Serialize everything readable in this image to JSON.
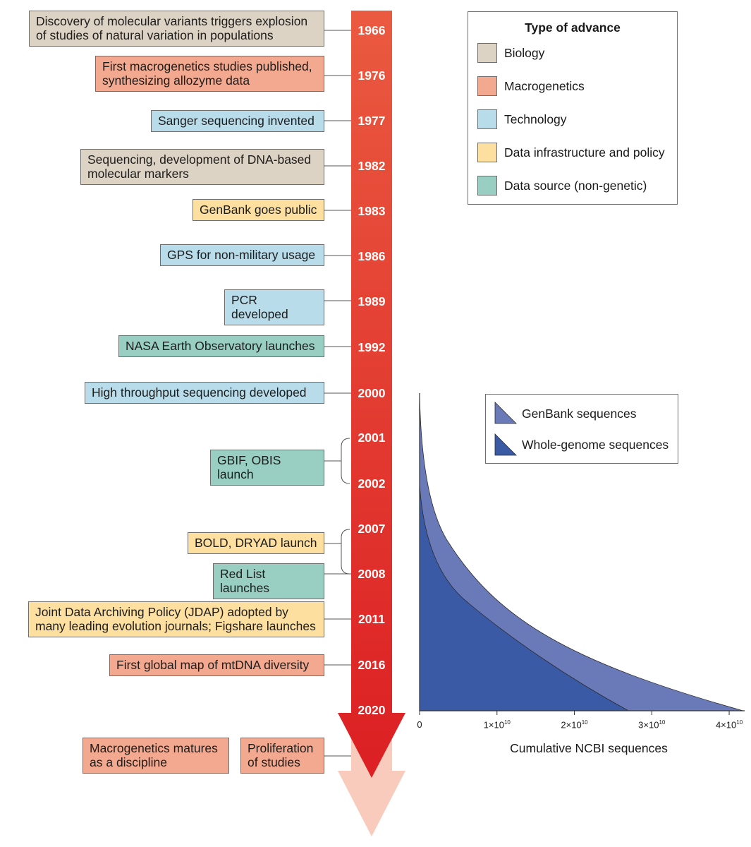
{
  "colors": {
    "biology": "#ddd3c4",
    "macrogenetics": "#f2a98f",
    "technology": "#b9dcea",
    "data_infrastructure": "#fddf9f",
    "data_source": "#98cfc2",
    "arrow_top": "#ea5a40",
    "arrow_bottom": "#dc1f23",
    "arrow_future": "#f8cbbd",
    "genbank": "#6a7ab9",
    "whole_genome": "#3a5aa6"
  },
  "legend": {
    "title": "Type of advance",
    "items": [
      {
        "label": "Biology",
        "color": "#ddd3c4"
      },
      {
        "label": "Macrogenetics",
        "color": "#f2a98f"
      },
      {
        "label": "Technology",
        "color": "#b9dcea"
      },
      {
        "label": "Data infrastructure and policy",
        "color": "#fddf9f"
      },
      {
        "label": "Data source (non-genetic)",
        "color": "#98cfc2"
      }
    ]
  },
  "years": [
    "1966",
    "1976",
    "1977",
    "1982",
    "1983",
    "1986",
    "1989",
    "1992",
    "2000",
    "2001",
    "2002",
    "2007",
    "2008",
    "2011",
    "2016",
    "2020"
  ],
  "events": [
    {
      "text": "Discovery of molecular variants triggers explosion of studies of natural variation in populations",
      "category": "biology"
    },
    {
      "text": "First macrogenetics studies published, synthesizing allozyme data",
      "category": "macrogenetics"
    },
    {
      "text": "Sanger sequencing invented",
      "category": "technology"
    },
    {
      "text": "Sequencing, development of DNA-based molecular markers",
      "category": "biology"
    },
    {
      "text": "GenBank goes public",
      "category": "data_infrastructure"
    },
    {
      "text": "GPS for non-military usage",
      "category": "technology"
    },
    {
      "text": "PCR developed",
      "category": "technology"
    },
    {
      "text": "NASA Earth Observatory launches",
      "category": "data_source"
    },
    {
      "text": "High throughput sequencing developed",
      "category": "technology"
    },
    {
      "text": "GBIF, OBIS launch",
      "category": "data_source"
    },
    {
      "text": "BOLD, DRYAD launch",
      "category": "data_infrastructure"
    },
    {
      "text": "Red List launches",
      "category": "data_source"
    },
    {
      "text": "Joint Data Archiving Policy (JDAP) adopted by many leading evolution journals; Figshare launches",
      "category": "data_infrastructure"
    },
    {
      "text": "First global map of mtDNA diversity",
      "category": "macrogenetics"
    }
  ],
  "future": [
    {
      "text": "Macrogenetics matures as a discipline",
      "category": "macrogenetics"
    },
    {
      "text": "Proliferation of studies",
      "category": "macrogenetics"
    }
  ],
  "chart_data": {
    "type": "area",
    "xlabel": "Cumulative NCBI sequences",
    "x_ticks": [
      {
        "value": 0,
        "label": "0"
      },
      {
        "value": 10000000000,
        "mantissa": "1×10",
        "exp": "10"
      },
      {
        "value": 20000000000,
        "mantissa": "2×10",
        "exp": "10"
      },
      {
        "value": 30000000000,
        "mantissa": "3×10",
        "exp": "10"
      },
      {
        "value": 40000000000,
        "mantissa": "4×10",
        "exp": "10"
      }
    ],
    "xlim": [
      0,
      42000000000
    ],
    "y_axis": "year (shared with timeline, 2000 at top to 2020 at bottom)",
    "series": [
      {
        "name": "GenBank sequences",
        "x_end": 41800000000
      },
      {
        "name": "Whole-genome sequences",
        "x_end": 27000000000
      }
    ]
  }
}
